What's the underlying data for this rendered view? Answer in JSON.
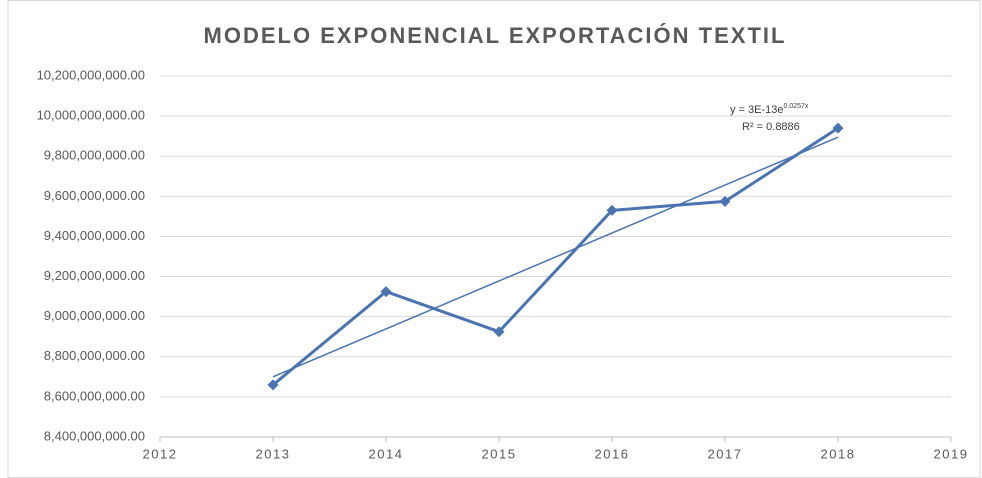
{
  "chart_data": {
    "type": "line",
    "title": "MODELO EXPONENCIAL EXPORTACIÓN TEXTIL",
    "x": [
      2013,
      2014,
      2015,
      2016,
      2017,
      2018
    ],
    "series": [
      {
        "color": "#4a73b0",
        "values": [
          8660000000,
          9125000000,
          8925000000,
          9530000000,
          9575000000,
          9940000000
        ]
      }
    ],
    "trendline": {
      "color": "#4a73b0",
      "x": [
        2013,
        2018
      ],
      "values": [
        8700000000,
        9895000000
      ],
      "equation": {
        "base": "y = 3E-13e",
        "exponent": "0.0257x"
      },
      "r_squared": "R² = 0.8886"
    },
    "xlim": [
      2012,
      2019
    ],
    "xticks": [
      2012,
      2013,
      2014,
      2015,
      2016,
      2017,
      2018,
      2019
    ],
    "ylim": [
      8400000000,
      10200000000
    ],
    "yticks": [
      {
        "value": 8400000000,
        "label": "8,400,000,000.00"
      },
      {
        "value": 8600000000,
        "label": "8,600,000,000.00"
      },
      {
        "value": 8800000000,
        "label": "8,800,000,000.00"
      },
      {
        "value": 9000000000,
        "label": "9,000,000,000.00"
      },
      {
        "value": 9200000000,
        "label": "9,200,000,000.00"
      },
      {
        "value": 9400000000,
        "label": "9,400,000,000.00"
      },
      {
        "value": 9600000000,
        "label": "9,600,000,000.00"
      },
      {
        "value": 9800000000,
        "label": "9,800,000,000.00"
      },
      {
        "value": 10000000000,
        "label": "10,000,000,000.00"
      },
      {
        "value": 10200000000,
        "label": "10,200,000,000.00"
      }
    ],
    "grid": true
  }
}
